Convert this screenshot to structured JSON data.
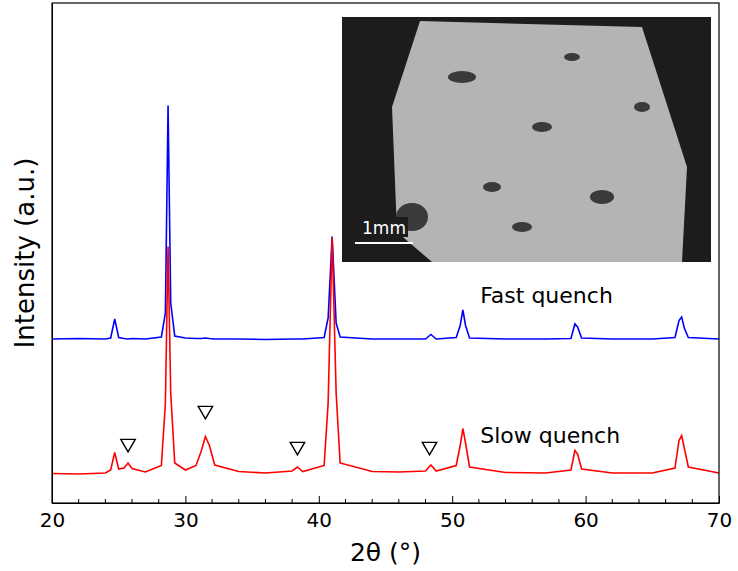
{
  "chart_data": {
    "type": "line",
    "xlabel": "2θ (°)",
    "ylabel": "Intensity (a.u.)",
    "xlim": [
      20,
      70
    ],
    "xticks": [
      20,
      30,
      40,
      50,
      60,
      70
    ],
    "x_minor_ticks": [
      22,
      24,
      26,
      28,
      32,
      34,
      36,
      38,
      42,
      44,
      46,
      48,
      52,
      54,
      56,
      58,
      62,
      64,
      66,
      68
    ],
    "ylim": [
      0,
      100
    ],
    "tick_labels": "x",
    "grid": false,
    "x": [
      20,
      22,
      24,
      24.4,
      24.7,
      25.0,
      25.4,
      25.7,
      26.0,
      27,
      28.2,
      28.5,
      28.7,
      28.9,
      29.2,
      30,
      30.8,
      31.2,
      31.5,
      31.8,
      32.2,
      34,
      36,
      38.0,
      38.4,
      38.8,
      40.4,
      40.7,
      41.0,
      41.3,
      41.6,
      44,
      46,
      48.0,
      48.4,
      48.8,
      50.3,
      50.6,
      50.8,
      51.0,
      51.3,
      54,
      57,
      58.9,
      59.2,
      59.4,
      59.7,
      62,
      65,
      66.7,
      67.0,
      67.2,
      67.4,
      67.7,
      70
    ],
    "series": [
      {
        "name": "Fast quench",
        "color": "#0000ff",
        "label_x": 52.1,
        "label_y": 41.2,
        "values": [
          32.8,
          32.9,
          32.8,
          33.0,
          36.8,
          33.1,
          32.9,
          32.8,
          32.9,
          32.8,
          33.2,
          38,
          79.5,
          40,
          33.4,
          33.0,
          32.9,
          32.9,
          33.0,
          32.9,
          32.8,
          32.8,
          32.7,
          32.8,
          32.8,
          32.8,
          33.1,
          37,
          53.3,
          36,
          33.2,
          32.8,
          32.8,
          32.8,
          33.7,
          32.8,
          33.1,
          35.5,
          38.6,
          35.5,
          33.0,
          32.8,
          32.8,
          32.9,
          35.8,
          35.2,
          33,
          32.8,
          32.8,
          33.1,
          36.5,
          37.2,
          35,
          33.1,
          32.8
        ]
      },
      {
        "name": "Slow quench",
        "color": "#ff0000",
        "label_x": 52.1,
        "label_y": 13.2,
        "values": [
          5.9,
          5.8,
          6.0,
          6.6,
          10.1,
          6.8,
          7.0,
          8.0,
          6.9,
          6.2,
          7.5,
          20,
          51.3,
          22,
          8,
          6.6,
          7.5,
          10.5,
          13.3,
          11.5,
          7.6,
          6.3,
          6.0,
          6.4,
          7.2,
          6.3,
          7.5,
          20,
          53.1,
          22,
          8,
          6.3,
          6.2,
          6.4,
          7.6,
          6.4,
          7.5,
          11.5,
          14.9,
          12,
          7.2,
          6.1,
          6.0,
          6.6,
          10.5,
          9.8,
          6.8,
          6.0,
          6.0,
          7.0,
          12.5,
          13.5,
          11,
          7.2,
          6.0
        ]
      }
    ],
    "annotations": [
      {
        "x": 25.7,
        "y": 11.9,
        "marker": "triangle-down"
      },
      {
        "x": 31.5,
        "y": 18.5,
        "marker": "triangle-down"
      },
      {
        "x": 38.4,
        "y": 11.3,
        "marker": "triangle-down"
      },
      {
        "x": 48.3,
        "y": 11.3,
        "marker": "triangle-down"
      }
    ],
    "inset": {
      "scale_bar": "1mm"
    }
  }
}
